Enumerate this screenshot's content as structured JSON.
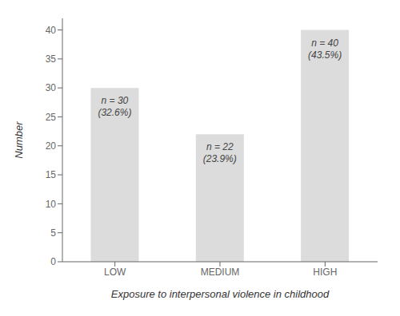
{
  "chart_data": {
    "type": "bar",
    "categories": [
      "LOW",
      "MEDIUM",
      "HIGH"
    ],
    "values": [
      30,
      22,
      40
    ],
    "value_labels": [
      "n = 30\n(32.6%)",
      "n = 22\n(23.9%)",
      "n = 40\n(43.5%)"
    ],
    "color": "#dcdcdc",
    "xlabel": "Exposure to interpersonal violence in childhood",
    "ylabel": "Number",
    "ylim": [
      0,
      42
    ],
    "yticks": [
      0,
      5,
      10,
      15,
      20,
      25,
      30,
      35,
      40
    ],
    "grid": false
  }
}
